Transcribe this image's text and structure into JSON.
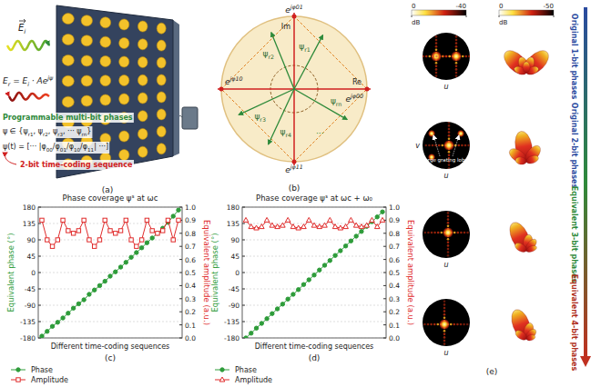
{
  "panel_a": {
    "label": "(a)",
    "incident": [
      {
        "t": "E"
      },
      {
        "sub": "i"
      }
    ],
    "reflected": [
      {
        "t": "E"
      },
      {
        "sub": "r"
      },
      {
        "t": " = E"
      },
      {
        "sub": "i"
      },
      {
        "t": " · Ae"
      },
      {
        "sup": "jψ"
      }
    ],
    "programmable": "Programmable multi-bit phases",
    "phase_set": [
      {
        "t": "ψ ∈ {ψ"
      },
      {
        "sub": "r1"
      },
      {
        "t": ", ψ"
      },
      {
        "sub": "r2"
      },
      {
        "t": ", ψ"
      },
      {
        "sub": "r3"
      },
      {
        "t": ", ··· ψ"
      },
      {
        "sub": "rn"
      },
      {
        "t": "}"
      }
    ],
    "sequence": [
      {
        "t": "ψ(t) = [··· |φ"
      },
      {
        "sub": "00"
      },
      {
        "t": "/φ"
      },
      {
        "sub": "01"
      },
      {
        "t": "/φ"
      },
      {
        "sub": "10"
      },
      {
        "t": "/φ"
      },
      {
        "sub": "11"
      },
      {
        "t": "| ···]"
      }
    ],
    "sequence_label": "2-bit time-coding sequence"
  },
  "panel_b": {
    "label": "(b)",
    "im": "Im",
    "re": "Re",
    "states": [
      [
        {
          "t": "e"
        },
        {
          "sup": "jφ01"
        }
      ],
      [
        {
          "t": "e"
        },
        {
          "sup": "jφ10"
        }
      ],
      [
        {
          "t": "e"
        },
        {
          "sup": "jφ11"
        }
      ],
      [
        {
          "t": "e"
        },
        {
          "sup": "jφ00"
        }
      ]
    ],
    "vectors": [
      [
        {
          "t": "ψ"
        },
        {
          "sub": "r1"
        }
      ],
      [
        {
          "t": "ψ"
        },
        {
          "sub": "r2"
        }
      ],
      [
        {
          "t": "ψ"
        },
        {
          "sub": "r3"
        }
      ],
      [
        {
          "t": "ψ"
        },
        {
          "sub": "r4"
        }
      ],
      [
        {
          "t": "ψ"
        },
        {
          "sub": "rn"
        }
      ]
    ],
    "ellipsis": "···"
  },
  "chart_data": [
    {
      "type": "line",
      "title": "Phase coverage ψˢ at ωc",
      "x_label": "Different time-coding sequences",
      "y_label": "Equivalent phase (°)",
      "y2_label": "Equivalent amplitude (a.u.)",
      "annotations": [
        "(c)"
      ],
      "categories": [
        null,
        null,
        null,
        null,
        null,
        null,
        null,
        null,
        null,
        null,
        null,
        null,
        null,
        null,
        null,
        null,
        null,
        null,
        null,
        null,
        null,
        null,
        null,
        null,
        null,
        null,
        null
      ],
      "ylim": [
        -180,
        180
      ],
      "yticks": [
        -180,
        -135,
        -90,
        -45,
        0,
        45,
        90,
        135,
        180
      ],
      "y2lim": [
        0,
        1
      ],
      "y2ticks": [
        {
          "value": 0,
          "label": "0.0"
        },
        0.1,
        0.2,
        0.3,
        0.4,
        0.5,
        0.6,
        0.7,
        0.8,
        0.9,
        {
          "value": 1,
          "label": "1.0"
        }
      ],
      "grid": true,
      "legend": "bottom",
      "tick_labels": "y",
      "series": [
        {
          "name": "Phase",
          "color": "#2e9c3a",
          "marker": "circle",
          "line_style": "solid",
          "values": [
            -175,
            -162,
            -148,
            -137,
            -125,
            -112,
            -98,
            -86,
            -75,
            -60,
            -48,
            -36,
            -24,
            -10,
            2,
            15,
            28,
            42,
            55,
            68,
            82,
            95,
            108,
            122,
            138,
            155,
            172
          ]
        },
        {
          "name": "Amplitude",
          "color": "#e02b2b",
          "marker": "square",
          "line_style": "solid",
          "axis": "y2",
          "values": [
            0.9,
            0.75,
            0.7,
            0.75,
            0.9,
            0.82,
            0.8,
            0.82,
            0.9,
            0.75,
            0.7,
            0.75,
            0.9,
            0.82,
            0.8,
            0.82,
            0.9,
            0.75,
            0.7,
            0.75,
            0.9,
            0.82,
            0.8,
            0.82,
            0.9,
            0.75,
            0.9
          ]
        }
      ]
    },
    {
      "type": "line",
      "title": "Phase coverage ψˢ at ωc + ω₀",
      "x_label": "Different time-coding sequences",
      "y_label": "Equivalent phase (°)",
      "y2_label": "Equivalent amplitude (a.u.)",
      "annotations": [
        "(d)"
      ],
      "categories": [
        null,
        null,
        null,
        null,
        null,
        null,
        null,
        null,
        null,
        null,
        null,
        null,
        null,
        null,
        null,
        null,
        null,
        null,
        null,
        null,
        null,
        null,
        null,
        null,
        null,
        null,
        null
      ],
      "ylim": [
        -180,
        180
      ],
      "yticks": [
        -180,
        -135,
        -90,
        -45,
        0,
        45,
        90,
        135,
        180
      ],
      "y2lim": [
        0,
        1
      ],
      "y2ticks": [
        {
          "value": 0,
          "label": "0.0"
        },
        0.1,
        0.2,
        0.3,
        0.4,
        0.5,
        0.6,
        0.7,
        0.8,
        0.9,
        {
          "value": 1,
          "label": "1.0"
        }
      ],
      "grid": true,
      "legend": "bottom",
      "tick_labels": "y",
      "series": [
        {
          "name": "Phase",
          "color": "#2e9c3a",
          "marker": "circle",
          "line_style": "solid",
          "values": [
            -180,
            -167,
            -153,
            -140,
            -127,
            -113,
            -100,
            -87,
            -73,
            -60,
            -47,
            -33,
            -20,
            -7,
            7,
            20,
            33,
            47,
            60,
            73,
            87,
            100,
            113,
            127,
            140,
            153,
            167
          ]
        },
        {
          "name": "Amplitude",
          "color": "#e02b2b",
          "marker": "triangle",
          "line_style": "solid",
          "axis": "y2",
          "values": [
            0.9,
            0.85,
            0.84,
            0.85,
            0.9,
            0.86,
            0.85,
            0.86,
            0.9,
            0.85,
            0.84,
            0.85,
            0.9,
            0.86,
            0.85,
            0.86,
            0.9,
            0.85,
            0.84,
            0.85,
            0.9,
            0.86,
            0.85,
            0.86,
            0.9,
            0.85,
            0.9
          ]
        }
      ]
    }
  ],
  "panel_e": {
    "label": "(e)",
    "colorbars": [
      {
        "range": [
          0,
          -40
        ],
        "ticks": [
          0,
          -40
        ],
        "label": "dB"
      },
      {
        "range": [
          0,
          -50
        ],
        "ticks": [
          0,
          -50
        ],
        "label": "dB"
      }
    ],
    "axis_u": "u",
    "axis_v": "v",
    "annotation": "Large grating lobes",
    "rows": [
      "Original 1-bit phases",
      "Original 2-bit phases",
      "Equivalent 3-bit phases",
      "Equivalent 4-bit phases"
    ]
  }
}
